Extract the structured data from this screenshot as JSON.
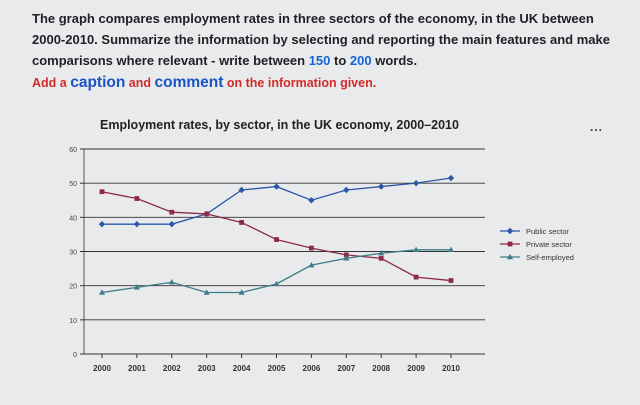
{
  "prompt": {
    "p1": "The graph compares employment rates in three sectors of the economy, in the UK between 2000-2010. Summarize the information by selecting and reporting the main features and make comparisons where relevant - write between ",
    "n1": "150",
    "to": " to ",
    "n2": "200",
    "p2": " words."
  },
  "instruction": {
    "a": "Add a ",
    "caption": "caption",
    "and": " and ",
    "comment": "comment",
    "b": " on the information given."
  },
  "menu_dots": "...",
  "chart_data": {
    "type": "line",
    "title": "Employment rates, by sector, in the UK economy, 2000–2010",
    "x": [
      2000,
      2001,
      2002,
      2003,
      2004,
      2005,
      2006,
      2007,
      2008,
      2009,
      2010
    ],
    "ylim": [
      0,
      60
    ],
    "yticks": [
      0,
      10,
      20,
      30,
      40,
      50,
      60
    ],
    "grid": true,
    "legend": "right",
    "series": [
      {
        "name": "Public sector",
        "color": "#2a57a8",
        "marker": "diamond",
        "values": [
          38,
          38,
          38,
          41,
          48,
          49,
          45,
          48,
          49,
          50,
          51.5
        ]
      },
      {
        "name": "Private sector",
        "color": "#8e2a45",
        "marker": "square",
        "values": [
          47.5,
          45.5,
          41.5,
          41,
          38.5,
          33.5,
          31,
          29,
          28,
          22.5,
          21.5
        ]
      },
      {
        "name": "Self-employed",
        "color": "#3d7d87",
        "marker": "triangle",
        "values": [
          18,
          19.5,
          21,
          18,
          18,
          20.5,
          26,
          28,
          29.5,
          30.5,
          30.5
        ]
      }
    ]
  }
}
